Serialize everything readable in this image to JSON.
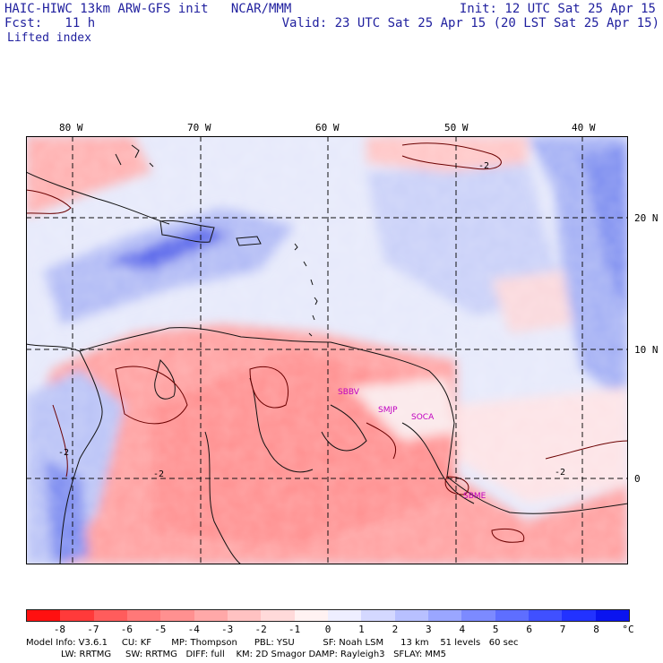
{
  "header": {
    "title_left": "HAIC-HIWC 13km ARW-GFS init   NCAR/MMM",
    "fcst": "Fcst:   11 h",
    "field": "Lifted index",
    "init": "Init: 12 UTC Sat 25 Apr 15",
    "valid": "Valid: 23 UTC Sat 25 Apr 15 (20 LST Sat 25 Apr 15)"
  },
  "map": {
    "lon_labels": [
      "80 W",
      "70 W",
      "60 W",
      "50 W",
      "40 W"
    ],
    "lat_labels": [
      "20 N",
      "10 N",
      "0"
    ],
    "contour_labels": [
      "-2",
      "-2",
      "-2",
      "-2"
    ],
    "sites": [
      "SBBV",
      "SMJP",
      "SOCA",
      "SBME"
    ]
  },
  "colorbar": {
    "ticks": [
      "-8",
      "-7",
      "-6",
      "-5",
      "-4",
      "-3",
      "-2",
      "-1",
      "0",
      "1",
      "2",
      "3",
      "4",
      "5",
      "6",
      "7",
      "8"
    ],
    "unit": "°C",
    "colors": [
      "#ff1010",
      "#ff3a3a",
      "#ff5c5c",
      "#ff7878",
      "#ff9090",
      "#ffa8a8",
      "#ffc2c2",
      "#ffdada",
      "#fff2f2",
      "#eeeeff",
      "#d4d8ff",
      "#b8c0ff",
      "#9aa6ff",
      "#7c8aff",
      "#5e6eff",
      "#4050ff",
      "#2232ff",
      "#0a14f0"
    ]
  },
  "footer": {
    "line1": "Model Info: V3.6.1     CU: KF       MP: Thompson      PBL: YSU          SF: Noah LSM      13 km    51 levels   60 sec",
    "line2": "LW: RRTMG     SW: RRTMG   DIFF: full    KM: 2D Smagor DAMP: Rayleigh3   SFLAY: MM5"
  }
}
